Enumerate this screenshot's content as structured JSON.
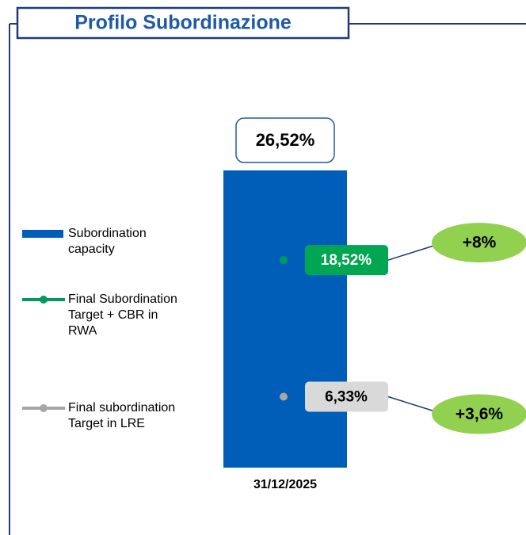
{
  "chart_data": {
    "type": "bar",
    "title": "Profilo Subordinazione",
    "categories": [
      "31/12/2025"
    ],
    "series": [
      {
        "name": "Subordination capacity",
        "type": "bar",
        "color": "#005EB8",
        "values": [
          26.52
        ],
        "value_labels": [
          "26,52%"
        ]
      },
      {
        "name": "Final Subordination Target + CBR in RWA",
        "type": "line",
        "color": "#009A60",
        "label_fill": "#00A651",
        "label_text_color": "#ffffff",
        "values": [
          18.52
        ],
        "value_labels": [
          "18,52%"
        ]
      },
      {
        "name": "Final subordination Target in LRE",
        "type": "line",
        "color": "#A6A6A6",
        "label_fill": "#D9D9D9",
        "label_text_color": "#000000",
        "values": [
          6.33
        ],
        "value_labels": [
          "6,33%"
        ]
      }
    ],
    "annotations": [
      "+8%",
      "+3,6%"
    ]
  }
}
